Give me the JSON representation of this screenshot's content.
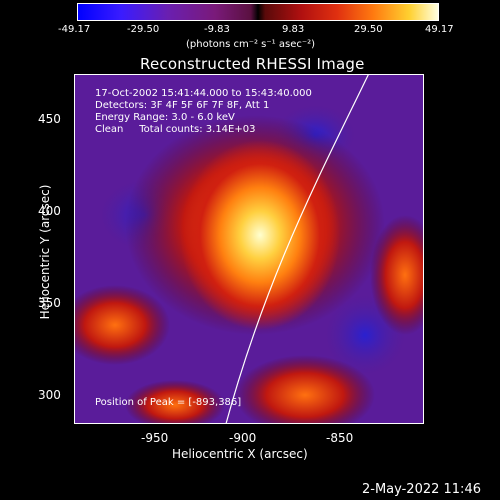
{
  "colorbar": {
    "ticks": [
      "-49.17",
      "-29.50",
      "-9.83",
      "9.83",
      "29.50",
      "49.17"
    ],
    "units": "(photons cm⁻² s⁻¹ asec⁻²)"
  },
  "title": "Reconstructed RHESSI Image",
  "info": {
    "time": "17-Oct-2002 15:41:44.000 to 15:43:40.000",
    "detectors": "Detectors: 3F 4F 5F 6F 7F 8F, Att 1",
    "energy": "Energy Range: 3.0 - 6.0 keV",
    "clean": "Clean     Total counts: 3.14E+03",
    "peak": "Position of Peak = [-893,386]"
  },
  "axes": {
    "x_label": "Heliocentric X (arcsec)",
    "y_label": "Heliocentric Y (arcsec)",
    "x_ticks": [
      "-950",
      "-900",
      "-850"
    ],
    "y_ticks": [
      "450",
      "400",
      "350",
      "300"
    ]
  },
  "footer_date": "2-May-2022 11:46"
}
